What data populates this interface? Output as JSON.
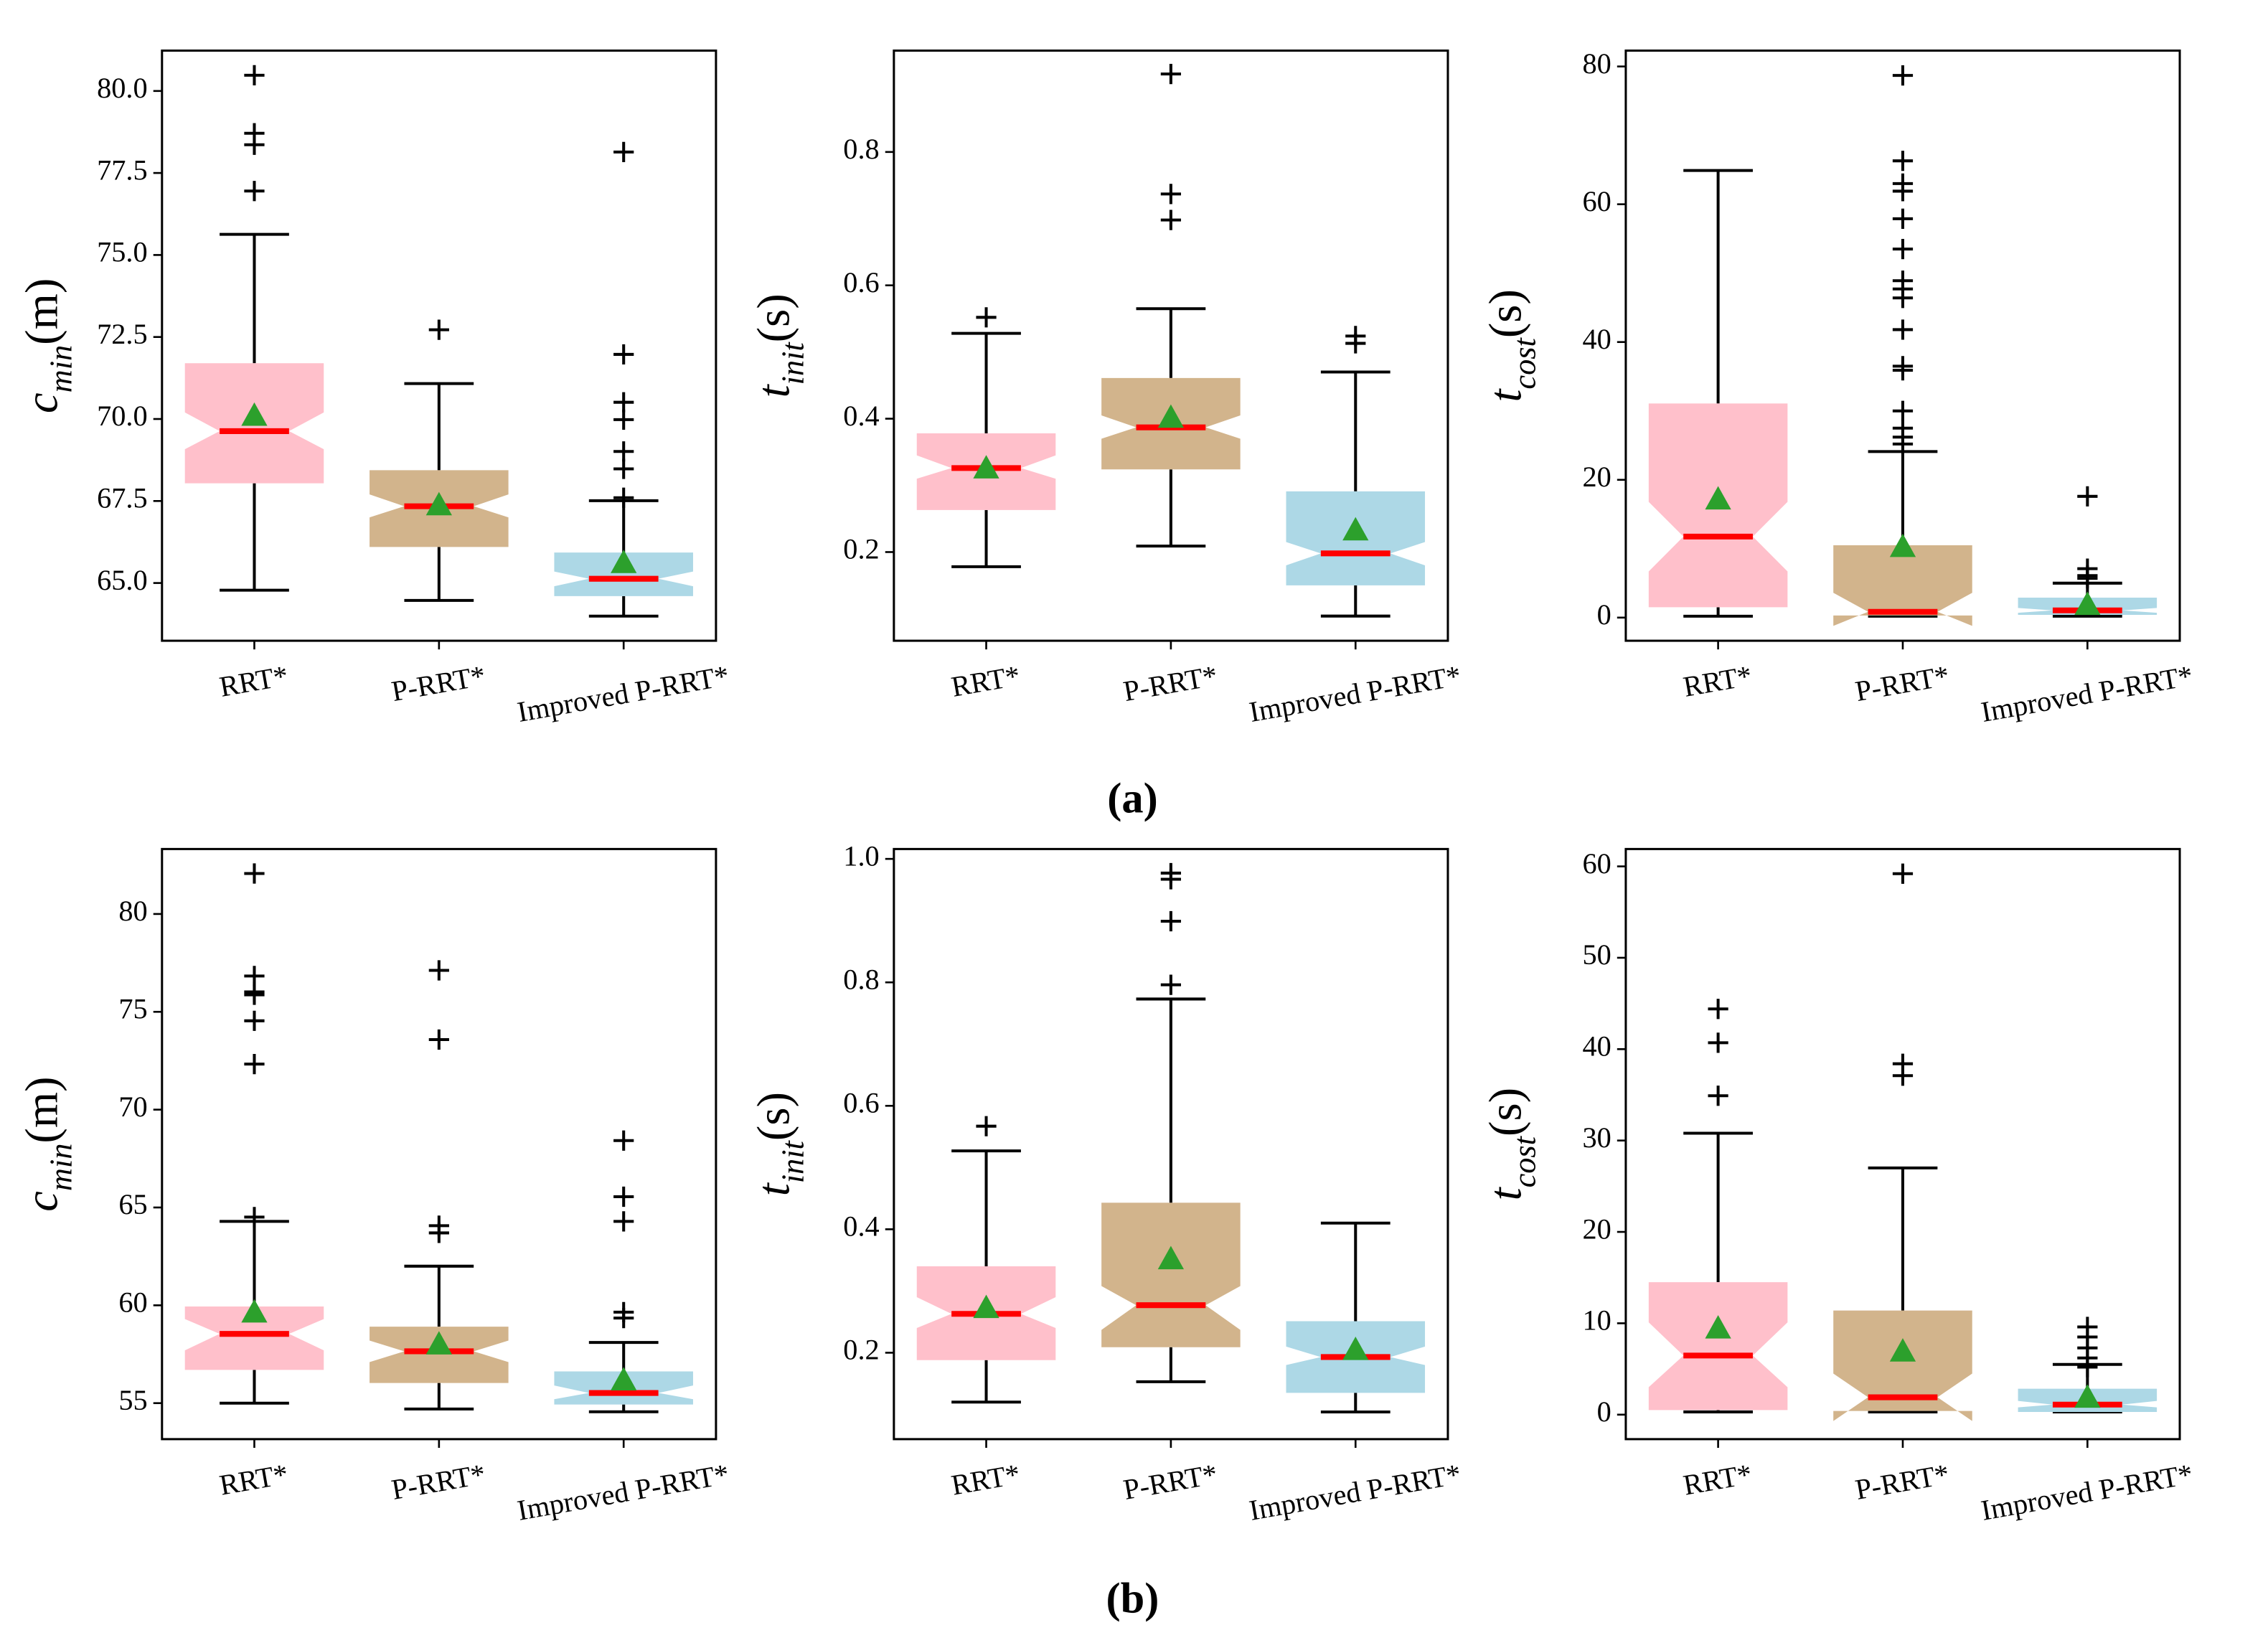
{
  "chart_data": [
    {
      "type": "box",
      "ylabel": {
        "symbol": "c",
        "subscript": "min",
        "unit": "(m)"
      },
      "categories": [
        "RRT*",
        "P-RRT*",
        "Improved P-RRT*"
      ],
      "colors": [
        "#ffc0cb",
        "#d2b48c",
        "#add8e6"
      ],
      "median_color": "#ff0000",
      "mean_color": "#2ca02c",
      "flier_color": "#000000",
      "ylim": [
        63.24,
        81.23
      ],
      "yticks": [
        {
          "value": 65,
          "label": "65.0"
        },
        {
          "value": 67.5,
          "label": "67.5"
        },
        {
          "value": 70,
          "label": "70.0"
        },
        {
          "value": 72.5,
          "label": "72.5"
        },
        {
          "value": 75,
          "label": "75.0"
        },
        {
          "value": 77.5,
          "label": "77.5"
        },
        {
          "value": 80,
          "label": "80.0"
        }
      ],
      "boxes": [
        {
          "whislo": 64.78,
          "q1": 68.04,
          "notch_low": 69.08,
          "med": 69.63,
          "notch_high": 70.2,
          "q3": 71.7,
          "whishi": 75.63,
          "mean": 70.11,
          "fliers": [
            80.48,
            78.71,
            78.36,
            76.95
          ]
        },
        {
          "whislo": 64.47,
          "q1": 66.1,
          "notch_low": 67.0,
          "med": 67.34,
          "notch_high": 67.7,
          "q3": 68.44,
          "whishi": 71.08,
          "mean": 67.38,
          "fliers": [
            72.72
          ]
        },
        {
          "whislo": 63.99,
          "q1": 64.6,
          "notch_low": 64.9,
          "med": 65.13,
          "notch_high": 65.35,
          "q3": 65.93,
          "whishi": 67.51,
          "mean": 65.62,
          "fliers": [
            78.14,
            71.97,
            70.51,
            69.98,
            69.01,
            68.48,
            67.6
          ]
        }
      ]
    },
    {
      "type": "box",
      "ylabel": {
        "symbol": "t",
        "subscript": "init",
        "unit": "(s)"
      },
      "categories": [
        "RRT*",
        "P-RRT*",
        "Improved P-RRT*"
      ],
      "colors": [
        "#ffc0cb",
        "#d2b48c",
        "#add8e6"
      ],
      "median_color": "#ff0000",
      "mean_color": "#2ca02c",
      "flier_color": "#000000",
      "ylim": [
        0.067,
        0.952
      ],
      "yticks": [
        0.2,
        0.4,
        0.6,
        0.8
      ],
      "boxes": [
        {
          "whislo": 0.178,
          "q1": 0.263,
          "notch_low": 0.31,
          "med": 0.326,
          "notch_high": 0.345,
          "q3": 0.378,
          "whishi": 0.528,
          "mean": 0.326,
          "fliers": [
            0.552
          ]
        },
        {
          "whislo": 0.209,
          "q1": 0.324,
          "notch_low": 0.37,
          "med": 0.387,
          "notch_high": 0.405,
          "q3": 0.461,
          "whishi": 0.565,
          "mean": 0.402,
          "fliers": [
            0.917,
            0.737,
            0.698
          ]
        },
        {
          "whislo": 0.104,
          "q1": 0.15,
          "notch_low": 0.18,
          "med": 0.198,
          "notch_high": 0.215,
          "q3": 0.291,
          "whishi": 0.47,
          "mean": 0.233,
          "fliers": [
            0.524,
            0.513
          ]
        }
      ]
    },
    {
      "type": "box",
      "ylabel": {
        "symbol": "t",
        "subscript": "cost",
        "unit": "(s)"
      },
      "categories": [
        "RRT*",
        "P-RRT*",
        "Improved P-RRT*"
      ],
      "colors": [
        "#ffc0cb",
        "#d2b48c",
        "#add8e6"
      ],
      "median_color": "#ff0000",
      "mean_color": "#2ca02c",
      "flier_color": "#000000",
      "ylim": [
        -3.36,
        82.3
      ],
      "yticks": [
        0,
        20,
        40,
        60,
        80
      ],
      "boxes": [
        {
          "whislo": 0.2,
          "q1": 1.5,
          "notch_low": 6.7,
          "med": 11.76,
          "notch_high": 16.8,
          "q3": 31.08,
          "whishi": 64.9,
          "mean": 17.2,
          "fliers": []
        },
        {
          "whislo": 0.2,
          "q1": 0.3,
          "notch_low": -1.2,
          "med": 0.84,
          "notch_high": 3.6,
          "q3": 10.5,
          "whishi": 24.1,
          "mean": 10.3,
          "fliers": [
            78.7,
            66.3,
            63.0,
            61.9,
            57.9,
            53.5,
            48.9,
            47.7,
            46.4,
            41.8,
            36.5,
            35.9,
            30.0,
            27.5,
            26.2,
            25.2
          ]
        },
        {
          "whislo": 0.2,
          "q1": 0.4,
          "notch_low": 0.7,
          "med": 1.05,
          "notch_high": 1.4,
          "q3": 2.9,
          "whishi": 5.0,
          "mean": 1.9,
          "fliers": [
            17.6,
            7.1,
            6.1,
            5.7
          ]
        }
      ]
    },
    {
      "type": "box",
      "ylabel": {
        "symbol": "c",
        "subscript": "min",
        "unit": "(m)"
      },
      "categories": [
        "RRT*",
        "P-RRT*",
        "Improved P-RRT*"
      ],
      "colors": [
        "#ffc0cb",
        "#d2b48c",
        "#add8e6"
      ],
      "median_color": "#ff0000",
      "mean_color": "#2ca02c",
      "flier_color": "#000000",
      "ylim": [
        53.16,
        83.32
      ],
      "yticks": [
        55,
        60,
        65,
        70,
        75,
        80
      ],
      "boxes": [
        {
          "whislo": 55.0,
          "q1": 56.7,
          "notch_low": 57.7,
          "med": 58.54,
          "notch_high": 59.3,
          "q3": 59.94,
          "whishi": 64.29,
          "mean": 59.65,
          "fliers": [
            82.07,
            76.83,
            76.02,
            75.87,
            74.54,
            72.33,
            64.51
          ]
        },
        {
          "whislo": 54.7,
          "q1": 56.03,
          "notch_low": 57.1,
          "med": 57.65,
          "notch_high": 58.2,
          "q3": 58.91,
          "whishi": 62.0,
          "mean": 58.02,
          "fliers": [
            77.12,
            73.58,
            64.07,
            63.7
          ]
        },
        {
          "whislo": 54.56,
          "q1": 54.93,
          "notch_low": 55.2,
          "med": 55.52,
          "notch_high": 55.9,
          "q3": 56.62,
          "whishi": 58.1,
          "mean": 56.18,
          "fliers": [
            68.42,
            65.55,
            64.29,
            59.65,
            59.35
          ]
        }
      ]
    },
    {
      "type": "box",
      "ylabel": {
        "symbol": "t",
        "subscript": "init",
        "unit": "(s)"
      },
      "categories": [
        "RRT*",
        "P-RRT*",
        "Improved P-RRT*"
      ],
      "colors": [
        "#ffc0cb",
        "#d2b48c",
        "#add8e6"
      ],
      "median_color": "#ff0000",
      "mean_color": "#2ca02c",
      "flier_color": "#000000",
      "ylim": [
        0.06,
        1.016
      ],
      "yticks": [
        0.2,
        0.4,
        0.6,
        0.8,
        {
          "value": 1,
          "label": "1.0"
        }
      ],
      "boxes": [
        {
          "whislo": 0.12,
          "q1": 0.188,
          "notch_low": 0.24,
          "med": 0.263,
          "notch_high": 0.29,
          "q3": 0.34,
          "whishi": 0.527,
          "mean": 0.273,
          "fliers": [
            0.567
          ]
        },
        {
          "whislo": 0.153,
          "q1": 0.209,
          "notch_low": 0.237,
          "med": 0.277,
          "notch_high": 0.308,
          "q3": 0.443,
          "whishi": 0.773,
          "mean": 0.352,
          "fliers": [
            0.977,
            0.967,
            0.899,
            0.796
          ]
        },
        {
          "whislo": 0.104,
          "q1": 0.135,
          "notch_low": 0.18,
          "med": 0.193,
          "notch_high": 0.21,
          "q3": 0.251,
          "whishi": 0.41,
          "mean": 0.205,
          "fliers": []
        }
      ]
    },
    {
      "type": "box",
      "ylabel": {
        "symbol": "t",
        "subscript": "cost",
        "unit": "(s)"
      },
      "categories": [
        "RRT*",
        "P-RRT*",
        "Improved P-RRT*"
      ],
      "colors": [
        "#ffc0cb",
        "#d2b48c",
        "#add8e6"
      ],
      "median_color": "#ff0000",
      "mean_color": "#2ca02c",
      "flier_color": "#000000",
      "ylim": [
        -2.68,
        61.9
      ],
      "yticks": [
        0,
        10,
        20,
        30,
        40,
        50,
        60
      ],
      "boxes": [
        {
          "whislo": 0.3,
          "q1": 0.5,
          "notch_low": 3.0,
          "med": 6.47,
          "notch_high": 10.1,
          "q3": 14.5,
          "whishi": 30.8,
          "mean": 9.47,
          "fliers": [
            44.4,
            40.7,
            34.9
          ]
        },
        {
          "whislo": 0.3,
          "q1": 0.4,
          "notch_low": -0.7,
          "med": 1.9,
          "notch_high": 4.5,
          "q3": 11.4,
          "whishi": 27.0,
          "mean": 6.95,
          "fliers": [
            59.2,
            38.4,
            37.1
          ]
        },
        {
          "whislo": 0.3,
          "q1": 0.3,
          "notch_low": 0.8,
          "med": 1.1,
          "notch_high": 1.5,
          "q3": 2.84,
          "whishi": 5.5,
          "mean": 1.9,
          "fliers": [
            9.6,
            8.5,
            7.3,
            6.2,
            5.2
          ]
        }
      ]
    }
  ],
  "panel_labels": [
    "(a)",
    "(b)"
  ]
}
